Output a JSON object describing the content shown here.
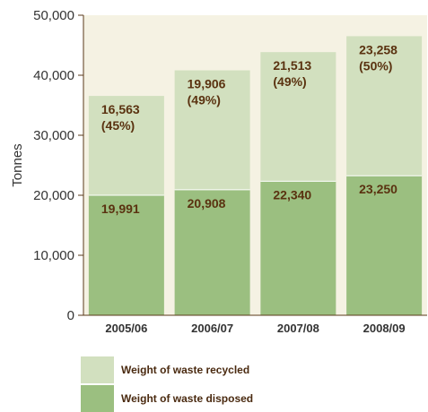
{
  "chart_data": {
    "type": "bar",
    "stacked": true,
    "categories": [
      "2005/06",
      "2006/07",
      "2007/08",
      "2008/09"
    ],
    "series": [
      {
        "name": "Weight of waste disposed",
        "values": [
          19991,
          20908,
          22340,
          23250
        ],
        "labels": [
          "19,991",
          "20,908",
          "22,340",
          "23,250"
        ],
        "color": "#9bbf80"
      },
      {
        "name": "Weight of waste recycled",
        "values": [
          16563,
          19906,
          21513,
          23258
        ],
        "labels": [
          "16,563",
          "19,906",
          "21,513",
          "23,258"
        ],
        "percent_labels": [
          "(45%)",
          "(49%)",
          "(49%)",
          "(50%)"
        ],
        "color": "#d2e0bf"
      }
    ],
    "ylabel": "Tonnes",
    "ylim": [
      0,
      50000
    ],
    "yticks": [
      0,
      10000,
      20000,
      30000,
      40000,
      50000
    ],
    "ytick_labels": [
      "0",
      "10,000",
      "20,000",
      "30,000",
      "40,000",
      "50,000"
    ],
    "plot_background": "#f5f2e3",
    "label_color": "#5a3210",
    "legend_position": "bottom"
  },
  "legend": {
    "items": [
      {
        "label": "Weight of waste recycled",
        "color": "#d2e0bf"
      },
      {
        "label": "Weight of waste disposed",
        "color": "#9bbf80"
      }
    ]
  }
}
